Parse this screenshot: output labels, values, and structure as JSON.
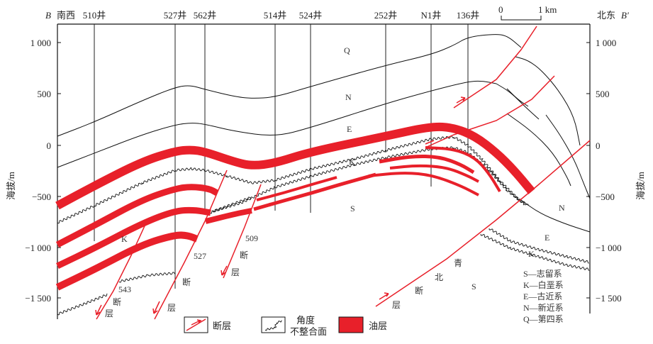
{
  "header": {
    "left_letter": "B",
    "left_dir": "南西",
    "right_letter": "B′",
    "right_dir": "北东",
    "scale_0": "0",
    "scale_1": "1 km"
  },
  "wells": [
    "510井",
    "527井",
    "562井",
    "514井",
    "524井",
    "252井",
    "N1井",
    "136井"
  ],
  "axis": {
    "label": "海拔/m",
    "ticks": [
      "1 000",
      "500",
      "0",
      "−500",
      "−1 000",
      "−1 500"
    ]
  },
  "strata_labels": {
    "Q": "Q",
    "N": "N",
    "E": "E",
    "K": "K",
    "S": "S"
  },
  "faults": {
    "f543": {
      "num": "543",
      "c1": "断",
      "c2": "层"
    },
    "f527": {
      "num": "527",
      "c1": "断",
      "c2": "层"
    },
    "f509": {
      "num": "509",
      "c1": "断",
      "c2": "层"
    },
    "qingbei": {
      "c1": "青",
      "c2": "北",
      "c3": "断",
      "c4": "层"
    }
  },
  "legend": {
    "fault": "断层",
    "unconf_1": "角度",
    "unconf_2": "不整合面",
    "oil": "油层"
  },
  "strat_legend": [
    "S—志留系",
    "K—白垩系",
    "E—古近系",
    "N—新近系",
    "Q—第四系"
  ],
  "colors": {
    "oil": "#e8202a",
    "fault": "#e8202a"
  }
}
